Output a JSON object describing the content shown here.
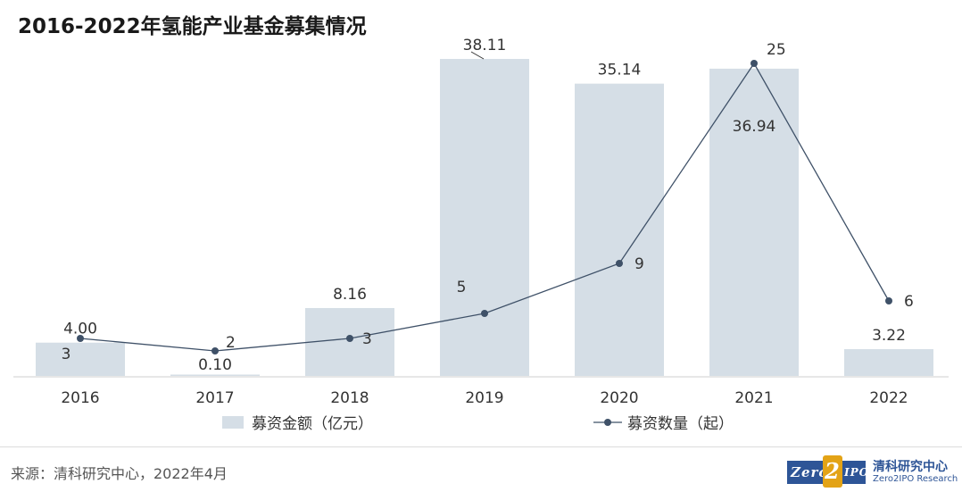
{
  "title": "2016-2022年氢能产业基金募集情况",
  "source": "来源：清科研究中心，2022年4月",
  "logo": {
    "zero_text": "Zero",
    "two_text": "2",
    "ipo_text": "IPO",
    "cn_text": "清科研究中心",
    "en_text": "Zero2IPO Research"
  },
  "colors": {
    "bar": "#d5dee6",
    "line": "#3f5168",
    "text": "#333333"
  },
  "chart_data": {
    "type": "bar",
    "categories": [
      "2016",
      "2017",
      "2018",
      "2019",
      "2020",
      "2021",
      "2022"
    ],
    "series": [
      {
        "name": "募资金额（亿元）",
        "type": "bar",
        "values": [
          4.0,
          0.1,
          8.16,
          38.11,
          35.14,
          36.94,
          3.22
        ],
        "labels": [
          "4.00",
          "0.10",
          "8.16",
          "38.11",
          "35.14",
          "36.94",
          "3.22"
        ]
      },
      {
        "name": "募资数量（起）",
        "type": "line",
        "values": [
          3,
          2,
          3,
          5,
          9,
          25,
          6
        ],
        "labels": [
          "3",
          "2",
          "3",
          "5",
          "9",
          "25",
          "6"
        ]
      }
    ],
    "legend_position": "bottom",
    "grid": false
  }
}
